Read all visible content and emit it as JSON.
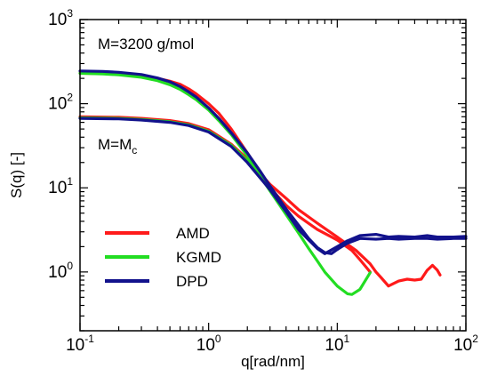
{
  "chart_data": {
    "type": "line",
    "xlabel": "q[rad/nm]",
    "ylabel": "S(q) [-]",
    "xscale": "log",
    "yscale": "log",
    "xlim": [
      0.1,
      100
    ],
    "ylim": [
      0.2,
      1000
    ],
    "x_ticks": [
      {
        "value": 0.1,
        "base": "10",
        "exp": "-1"
      },
      {
        "value": 1,
        "base": "10",
        "exp": "0"
      },
      {
        "value": 10,
        "base": "10",
        "exp": "1"
      },
      {
        "value": 100,
        "base": "10",
        "exp": "2"
      }
    ],
    "y_ticks": [
      {
        "value": 1,
        "base": "10",
        "exp": "0"
      },
      {
        "value": 10,
        "base": "10",
        "exp": "1"
      },
      {
        "value": 100,
        "base": "10",
        "exp": "2"
      },
      {
        "value": 1000,
        "base": "10",
        "exp": "3"
      }
    ],
    "annotations": [
      {
        "text": "M=3200 g/mol",
        "x": 0.135,
        "y": 380
      },
      {
        "text": "M=M",
        "sub": "c",
        "x": 0.135,
        "y": 36
      }
    ],
    "legend_position": "bottom-left",
    "series": [
      {
        "name": "AMD",
        "color": "#ff1a1a",
        "group": "M=3200 g/mol",
        "x": [
          0.1,
          0.15,
          0.2,
          0.3,
          0.4,
          0.5,
          0.6,
          0.7,
          0.8,
          1.0,
          1.2,
          1.5,
          2.0,
          2.5,
          3.0,
          4.0,
          5.0,
          7.0,
          10,
          13,
          15,
          18
        ],
        "y": [
          230,
          228,
          224,
          214,
          200,
          185,
          170,
          150,
          131,
          100,
          77,
          50,
          26,
          15.5,
          10,
          6.2,
          4.6,
          3.2,
          2.4,
          1.8,
          1.4,
          1.0
        ]
      },
      {
        "name": "AMD",
        "color": "#ff1a1a",
        "group": "M=M_c",
        "x": [
          0.1,
          0.2,
          0.3,
          0.5,
          0.7,
          1.0,
          1.5,
          2.0,
          3.0,
          4.0,
          5.0,
          7.0,
          10,
          14,
          18,
          20,
          22,
          25,
          30,
          35,
          40,
          45,
          50,
          55,
          60,
          63
        ],
        "y": [
          70,
          69,
          67,
          63,
          58,
          49,
          33,
          22,
          11,
          7.5,
          5.5,
          3.8,
          2.6,
          1.8,
          1.25,
          1.0,
          0.85,
          0.68,
          0.78,
          0.82,
          0.8,
          0.82,
          1.05,
          1.2,
          1.05,
          0.92
        ]
      },
      {
        "name": "KGMD",
        "color": "#22dd22",
        "group": "M=3200 g/mol",
        "x": [
          0.1,
          0.15,
          0.2,
          0.3,
          0.4,
          0.5,
          0.6,
          0.7,
          0.8,
          1.0,
          1.2,
          1.5,
          2.0,
          2.5,
          3.0,
          4.0,
          5.0,
          6.0,
          7.0,
          8.0,
          10,
          12,
          13,
          15,
          18
        ],
        "y": [
          230,
          226,
          220,
          206,
          188,
          168,
          148,
          128,
          112,
          84,
          63,
          43,
          24,
          14,
          9.2,
          4.8,
          2.9,
          1.9,
          1.35,
          1.0,
          0.68,
          0.55,
          0.54,
          0.62,
          0.98
        ]
      },
      {
        "name": "KGMD",
        "color": "#22dd22",
        "group": "M=M_c",
        "x": [
          0.1,
          0.2,
          0.3,
          0.5,
          0.7,
          1.0,
          1.5,
          2.0,
          3.0
        ],
        "y": [
          68,
          67,
          65,
          61,
          56,
          47,
          32,
          21,
          10.5
        ]
      },
      {
        "name": "DPD",
        "color": "#12128c",
        "group": "M=3200 g/mol",
        "x": [
          0.1,
          0.15,
          0.2,
          0.3,
          0.4,
          0.5,
          0.6,
          0.7,
          0.8,
          1.0,
          1.2,
          1.5,
          2.0,
          2.5,
          3.0,
          4.0,
          5.0,
          6.0,
          7.0,
          8.0,
          9.0,
          10,
          12,
          15,
          20,
          25,
          30,
          40,
          50,
          60,
          80,
          100
        ],
        "y": [
          245,
          242,
          236,
          222,
          202,
          182,
          160,
          138,
          120,
          89,
          67,
          45,
          26,
          16,
          10.5,
          5.6,
          3.6,
          2.5,
          1.95,
          1.7,
          1.65,
          1.85,
          2.2,
          2.5,
          2.45,
          2.5,
          2.45,
          2.5,
          2.5,
          2.45,
          2.5,
          2.5
        ]
      },
      {
        "name": "DPD",
        "color": "#12128c",
        "group": "M=M_c",
        "x": [
          0.1,
          0.2,
          0.3,
          0.5,
          0.7,
          1.0,
          1.5,
          2.0,
          3.0,
          4.0,
          5.0,
          6.0,
          7.0,
          8.0,
          10,
          12,
          15,
          20,
          25,
          30,
          40,
          50,
          60,
          80,
          100
        ],
        "y": [
          67,
          66,
          64,
          60,
          55,
          46,
          31,
          20,
          9.5,
          5.2,
          3.2,
          2.4,
          1.9,
          1.65,
          2.0,
          2.35,
          2.7,
          2.8,
          2.6,
          2.65,
          2.6,
          2.7,
          2.6,
          2.6,
          2.65
        ]
      }
    ],
    "legend": [
      {
        "name": "AMD",
        "color": "#ff1a1a"
      },
      {
        "name": "KGMD",
        "color": "#22dd22"
      },
      {
        "name": "DPD",
        "color": "#12128c"
      }
    ]
  }
}
